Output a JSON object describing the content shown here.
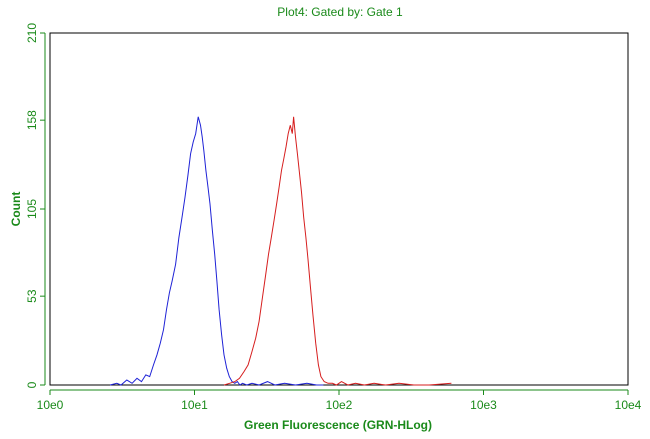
{
  "chart_data": {
    "type": "line",
    "title": "Plot4:  Gated by: Gate 1",
    "xlabel": "Green Fluorescence (GRN-HLog)",
    "ylabel": "Count",
    "x_scale": "log",
    "xlim": [
      1,
      10000
    ],
    "ylim": [
      0,
      210
    ],
    "x_ticks": [
      1,
      10,
      100,
      1000,
      10000
    ],
    "x_tick_labels": [
      "10e0",
      "10e1",
      "10e2",
      "10e3",
      "10e4"
    ],
    "y_ticks": [
      0,
      53,
      105,
      158,
      210
    ],
    "y_tick_labels": [
      "0",
      "53",
      "105",
      "158",
      "210"
    ],
    "grid": false,
    "legend": "none",
    "colors": {
      "text": "#1a8a1a",
      "axis": "#1a8a1a",
      "plot_border": "#000000"
    },
    "series": [
      {
        "color": "#1e22d6",
        "x": [
          2.6,
          2.9,
          3.1,
          3.4,
          3.7,
          4.0,
          4.3,
          4.6,
          4.9,
          5.2,
          5.5,
          5.8,
          6.1,
          6.4,
          6.7,
          7.0,
          7.4,
          7.8,
          8.2,
          8.6,
          9.0,
          9.4,
          9.8,
          10.2,
          10.6,
          11.0,
          11.3,
          11.6,
          12.0,
          12.4,
          12.8,
          13.3,
          13.8,
          14.3,
          14.8,
          15.4,
          16.0,
          16.7,
          17.4,
          18.2,
          19.0,
          19.8,
          20.6,
          21.5,
          23.0,
          25.0,
          28.0,
          32.0,
          36.0,
          42.0,
          50.0,
          60.0,
          70.0,
          78.0
        ],
        "y": [
          0,
          1,
          0,
          3,
          1,
          4,
          2,
          6,
          5,
          12,
          18,
          25,
          33,
          45,
          55,
          62,
          72,
          88,
          100,
          112,
          125,
          138,
          145,
          150,
          160,
          155,
          148,
          140,
          128,
          118,
          108,
          92,
          78,
          62,
          45,
          30,
          18,
          10,
          5,
          2,
          1,
          2,
          0,
          1,
          0,
          1,
          0,
          2,
          0,
          1,
          0,
          1,
          0,
          0
        ]
      },
      {
        "color": "#d61e1e",
        "x": [
          16.0,
          17.5,
          19.0,
          20.5,
          22.0,
          23.5,
          25.0,
          26.5,
          28.0,
          29.5,
          31.0,
          32.5,
          34.0,
          35.5,
          37.0,
          38.5,
          40.0,
          41.5,
          43.0,
          44.5,
          46.0,
          47.5,
          48.5,
          50.0,
          51.5,
          53.0,
          55.0,
          57.0,
          59.0,
          61.0,
          63.5,
          66.0,
          69.0,
          72.0,
          75.0,
          79.0,
          84.0,
          90.0,
          96.0,
          104.0,
          115.0,
          130.0,
          150.0,
          175.0,
          210.0,
          260.0,
          330.0,
          420.0,
          600.0
        ],
        "y": [
          0,
          1,
          2,
          4,
          8,
          12,
          20,
          28,
          38,
          52,
          65,
          78,
          88,
          98,
          108,
          118,
          128,
          135,
          142,
          150,
          155,
          150,
          160,
          148,
          138,
          128,
          115,
          100,
          88,
          75,
          58,
          42,
          25,
          12,
          5,
          2,
          1,
          1,
          0,
          2,
          0,
          1,
          0,
          1,
          0,
          1,
          0,
          0,
          1
        ]
      }
    ]
  }
}
